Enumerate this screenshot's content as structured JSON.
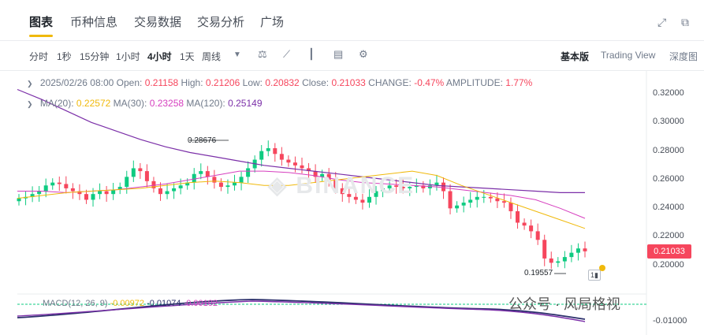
{
  "top_tabs": [
    "图表",
    "币种信息",
    "交易数据",
    "交易分析",
    "广场"
  ],
  "timeframes": [
    "分时",
    "1秒",
    "15分钟",
    "1小时",
    "4小时",
    "1天",
    "周线"
  ],
  "active_timeframe": "4小时",
  "views": [
    "基本版",
    "Trading View",
    "深度图"
  ],
  "active_view": "基本版",
  "ohlc": {
    "date": "2025/02/26 08:00",
    "open_label": "Open:",
    "open": "0.21158",
    "high_label": "High:",
    "high": "0.21206",
    "low_label": "Low:",
    "low": "0.20832",
    "close_label": "Close:",
    "close": "0.21033",
    "change_label": "CHANGE:",
    "change": "-0.47%",
    "amplitude_label": "AMPLITUDE:",
    "amplitude": "1.77%"
  },
  "ma": {
    "ma20_label": "MA(20):",
    "ma20": "0.22572",
    "ma30_label": "MA(30):",
    "ma30": "0.23258",
    "ma120_label": "MA(120):",
    "ma120": "0.25149"
  },
  "macd": {
    "label": "MACD(12, 26, 9)",
    "v1": "-0.00972",
    "v2": "-0.01074",
    "v3": "-0.00102"
  },
  "price_axis": [
    "0.32000",
    "0.30000",
    "0.28000",
    "0.26000",
    "0.24000",
    "0.22000",
    "0.20000"
  ],
  "macd_axis": [
    "-0.01000"
  ],
  "current_price": "0.21033",
  "high_marker": "0.28676",
  "low_marker": "0.19557",
  "watermark": "公众号 · 风局格视",
  "colors": {
    "up": "#0ecb81",
    "down": "#f6465d",
    "accent": "#f0b90b",
    "ma20": "#f0b90b",
    "ma30": "#d63fbf",
    "ma120": "#7b2fa8"
  },
  "chart_data": {
    "type": "candlestick",
    "ylim": [
      0.19,
      0.33
    ],
    "candles_close": [
      0.247,
      0.248,
      0.25,
      0.252,
      0.256,
      0.258,
      0.257,
      0.254,
      0.252,
      0.25,
      0.246,
      0.25,
      0.252,
      0.25,
      0.253,
      0.255,
      0.262,
      0.268,
      0.266,
      0.259,
      0.254,
      0.25,
      0.252,
      0.254,
      0.256,
      0.258,
      0.264,
      0.266,
      0.262,
      0.258,
      0.255,
      0.256,
      0.258,
      0.262,
      0.268,
      0.274,
      0.28,
      0.282,
      0.278,
      0.274,
      0.272,
      0.27,
      0.268,
      0.266,
      0.262,
      0.264,
      0.26,
      0.254,
      0.25,
      0.248,
      0.246,
      0.244,
      0.248,
      0.252,
      0.254,
      0.256,
      0.255,
      0.254,
      0.255,
      0.256,
      0.254,
      0.256,
      0.258,
      0.252,
      0.24,
      0.242,
      0.244,
      0.246,
      0.248,
      0.248,
      0.247,
      0.245,
      0.244,
      0.238,
      0.23,
      0.228,
      0.224,
      0.218,
      0.205,
      0.202,
      0.203,
      0.206,
      0.209,
      0.212,
      0.21
    ],
    "ma20_values": [
      0.247,
      0.249,
      0.251,
      0.252,
      0.253,
      0.254,
      0.256,
      0.258,
      0.259,
      0.258,
      0.256,
      0.256,
      0.258,
      0.26,
      0.262,
      0.264,
      0.266,
      0.263,
      0.256,
      0.25,
      0.244,
      0.238,
      0.232,
      0.226
    ],
    "ma30_values": [
      0.252,
      0.252,
      0.251,
      0.252,
      0.253,
      0.255,
      0.257,
      0.26,
      0.263,
      0.266,
      0.266,
      0.265,
      0.263,
      0.26,
      0.258,
      0.257,
      0.256,
      0.255,
      0.253,
      0.251,
      0.249,
      0.246,
      0.24,
      0.233
    ],
    "ma120_values": [
      0.323,
      0.316,
      0.308,
      0.3,
      0.294,
      0.288,
      0.283,
      0.279,
      0.276,
      0.273,
      0.27,
      0.268,
      0.266,
      0.264,
      0.262,
      0.26,
      0.258,
      0.256,
      0.255,
      0.254,
      0.253,
      0.252,
      0.251,
      0.251
    ]
  }
}
